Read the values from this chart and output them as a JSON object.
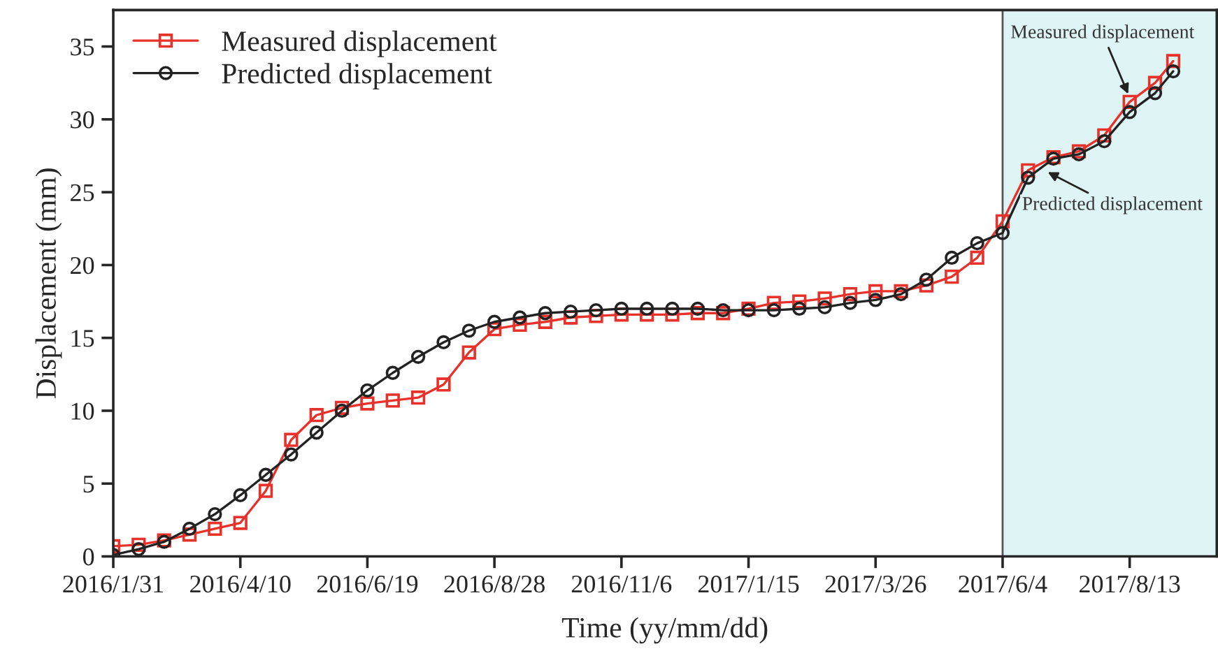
{
  "chart_data": {
    "type": "line",
    "xlabel": "Time (yy/mm/dd)",
    "ylabel": "Displacement (mm)",
    "x": [
      "2016-01-31",
      "2016-02-14",
      "2016-02-28",
      "2016-03-13",
      "2016-03-27",
      "2016-04-10",
      "2016-04-24",
      "2016-05-08",
      "2016-05-22",
      "2016-06-05",
      "2016-06-19",
      "2016-07-03",
      "2016-07-17",
      "2016-07-31",
      "2016-08-14",
      "2016-08-28",
      "2016-09-11",
      "2016-09-25",
      "2016-10-09",
      "2016-10-23",
      "2016-11-06",
      "2016-11-20",
      "2016-12-04",
      "2016-12-18",
      "2017-01-01",
      "2017-01-15",
      "2017-01-29",
      "2017-02-12",
      "2017-02-26",
      "2017-03-12",
      "2017-03-26",
      "2017-04-09",
      "2017-04-23",
      "2017-05-07",
      "2017-05-21",
      "2017-06-04",
      "2017-06-18",
      "2017-07-02",
      "2017-07-16",
      "2017-07-30",
      "2017-08-13",
      "2017-08-27",
      "2017-09-06"
    ],
    "series": [
      {
        "name": "Measured displacement",
        "color": "#e8312a",
        "marker": "square",
        "values": [
          0.7,
          0.8,
          1.1,
          1.5,
          1.9,
          2.3,
          4.5,
          8.0,
          9.7,
          10.2,
          10.5,
          10.7,
          10.9,
          11.8,
          14.0,
          15.6,
          15.9,
          16.1,
          16.4,
          16.5,
          16.6,
          16.6,
          16.6,
          16.7,
          16.7,
          17.0,
          17.4,
          17.5,
          17.7,
          18.0,
          18.2,
          18.2,
          18.6,
          19.2,
          20.5,
          23.0,
          26.5,
          27.4,
          27.8,
          28.9,
          31.2,
          32.5,
          34.0
        ]
      },
      {
        "name": "Predicted displacement",
        "color": "#222222",
        "marker": "circle",
        "values": [
          0.1,
          0.5,
          1.0,
          1.9,
          2.9,
          4.2,
          5.6,
          7.0,
          8.5,
          10.0,
          11.4,
          12.6,
          13.7,
          14.7,
          15.5,
          16.1,
          16.4,
          16.7,
          16.8,
          16.9,
          17.0,
          17.0,
          17.0,
          17.0,
          16.9,
          16.9,
          16.9,
          17.0,
          17.1,
          17.4,
          17.6,
          18.0,
          19.0,
          20.5,
          21.5,
          22.2,
          26.0,
          27.3,
          27.6,
          28.5,
          30.5,
          31.8,
          33.3
        ]
      }
    ],
    "xlim": [
      "2016-01-31",
      "2017-09-30"
    ],
    "xticks": [
      {
        "value": "2016-01-31",
        "label": "2016/1/31"
      },
      {
        "value": "2016-04-10",
        "label": "2016/4/10"
      },
      {
        "value": "2016-06-19",
        "label": "2016/6/19"
      },
      {
        "value": "2016-08-28",
        "label": "2016/8/28"
      },
      {
        "value": "2016-11-06",
        "label": "2016/11/6"
      },
      {
        "value": "2017-01-15",
        "label": "2017/1/15"
      },
      {
        "value": "2017-03-26",
        "label": "2017/3/26"
      },
      {
        "value": "2017-06-04",
        "label": "2017/6/4"
      },
      {
        "value": "2017-08-13",
        "label": "2017/8/13"
      }
    ],
    "ylim": [
      0,
      37.5
    ],
    "yticks": [
      0,
      5,
      10,
      15,
      20,
      25,
      30,
      35
    ],
    "bands": [
      {
        "axis": "x",
        "from": "2017-06-04",
        "to": "2017-09-30",
        "color": "#dff5f5"
      }
    ],
    "ref_lines": [
      {
        "axis": "x",
        "value": "2017-06-04",
        "color": "#555555"
      }
    ],
    "annotations": [
      {
        "text": "Measured displacement",
        "x": "2017-08-13",
        "y": 31.5
      },
      {
        "text": "Predicted displacement",
        "x": "2017-06-27",
        "y": 26.5
      }
    ],
    "legend": "top left",
    "grid": false,
    "line_style": "solid"
  }
}
